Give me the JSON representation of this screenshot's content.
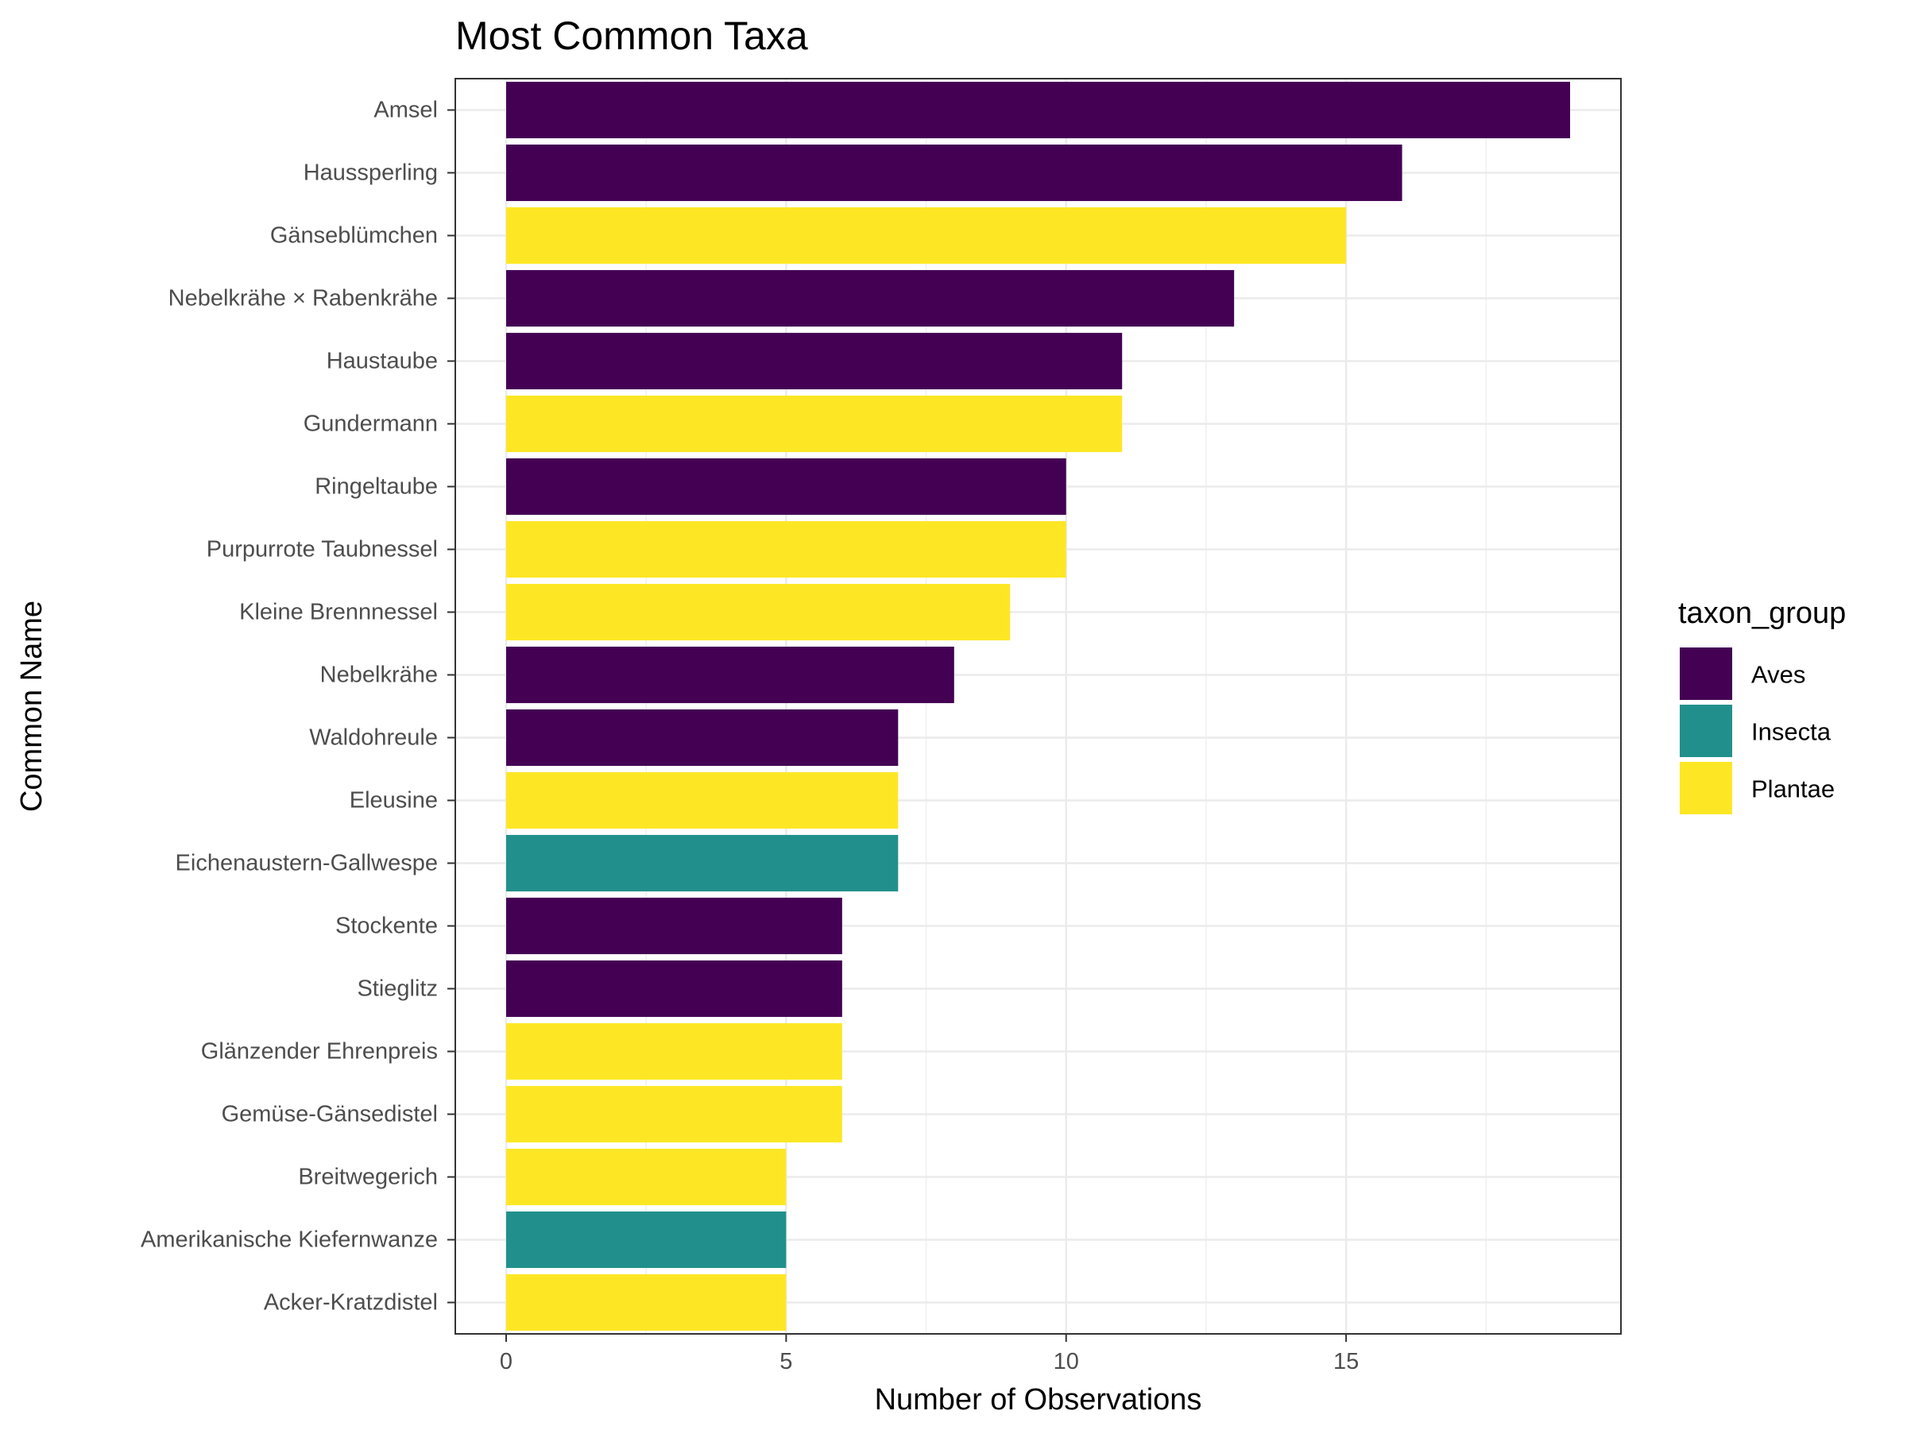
{
  "chart_data": {
    "type": "bar",
    "orientation": "horizontal",
    "title": "Most Common Taxa",
    "xlabel": "Number of Observations",
    "ylabel": "Common Name",
    "xlim": [
      0,
      19.9
    ],
    "xticks": [
      0,
      5,
      10,
      15
    ],
    "grid": true,
    "legend_title": "taxon_group",
    "legend_position": "right",
    "groups": [
      {
        "name": "Aves",
        "color": "#440154"
      },
      {
        "name": "Insecta",
        "color": "#21908C"
      },
      {
        "name": "Plantae",
        "color": "#FDE725"
      }
    ],
    "bars": [
      {
        "category": "Amsel",
        "value": 19,
        "group": "Aves"
      },
      {
        "category": "Haussperling",
        "value": 16,
        "group": "Aves"
      },
      {
        "category": "Gänseblümchen",
        "value": 15,
        "group": "Plantae"
      },
      {
        "category": "Nebelkrähe × Rabenkrähe",
        "value": 13,
        "group": "Aves"
      },
      {
        "category": "Haustaube",
        "value": 11,
        "group": "Aves"
      },
      {
        "category": "Gundermann",
        "value": 11,
        "group": "Plantae"
      },
      {
        "category": "Ringeltaube",
        "value": 10,
        "group": "Aves"
      },
      {
        "category": "Purpurrote Taubnessel",
        "value": 10,
        "group": "Plantae"
      },
      {
        "category": "Kleine Brennnessel",
        "value": 9,
        "group": "Plantae"
      },
      {
        "category": "Nebelkrähe",
        "value": 8,
        "group": "Aves"
      },
      {
        "category": "Waldohreule",
        "value": 7,
        "group": "Aves"
      },
      {
        "category": "Eleusine",
        "value": 7,
        "group": "Plantae"
      },
      {
        "category": "Eichenaustern-Gallwespe",
        "value": 7,
        "group": "Insecta"
      },
      {
        "category": "Stockente",
        "value": 6,
        "group": "Aves"
      },
      {
        "category": "Stieglitz",
        "value": 6,
        "group": "Aves"
      },
      {
        "category": "Glänzender Ehrenpreis",
        "value": 6,
        "group": "Plantae"
      },
      {
        "category": "Gemüse-Gänsedistel",
        "value": 6,
        "group": "Plantae"
      },
      {
        "category": "Breitwegerich",
        "value": 5,
        "group": "Plantae"
      },
      {
        "category": "Amerikanische Kiefernwanze",
        "value": 5,
        "group": "Insecta"
      },
      {
        "category": "Acker-Kratzdistel",
        "value": 5,
        "group": "Plantae"
      }
    ]
  }
}
